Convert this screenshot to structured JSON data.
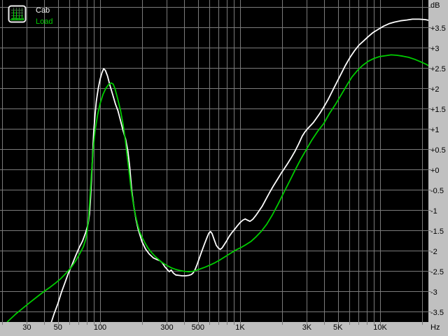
{
  "legend": {
    "icon": "spectrum-analyzer-icon",
    "items": [
      {
        "label": "Cab",
        "color": "#ffffff"
      },
      {
        "label": "Load",
        "color": "#00cc00"
      }
    ]
  },
  "axis": {
    "y_unit_label": "dB",
    "x_unit_label": "Hz"
  },
  "colors": {
    "background": "#000000",
    "grid": "#7a7a7a",
    "axis_strip": "#c0c0c0",
    "axis_text": "#000000",
    "cab_curve": "#ffffff",
    "load_curve": "#00cc00"
  },
  "chart_data": {
    "type": "line",
    "x_scale": "log",
    "x_unit": "Hz",
    "y_unit": "dB",
    "xlim": [
      19.3,
      22300
    ],
    "ylim": [
      -3.8,
      4.17
    ],
    "grid": {
      "x_lines_hz": [
        20,
        30,
        40,
        50,
        60,
        70,
        80,
        90,
        100,
        200,
        300,
        400,
        500,
        600,
        700,
        800,
        900,
        1000,
        2000,
        3000,
        4000,
        5000,
        6000,
        7000,
        8000,
        9000,
        10000,
        20000
      ],
      "y_lines_db_max": 4,
      "y_lines_db_min": -3.5,
      "y_lines_step": 0.5
    },
    "x_ticks": [
      {
        "hz": 30,
        "label": "30"
      },
      {
        "hz": 50,
        "label": "50"
      },
      {
        "hz": 100,
        "label": "100"
      },
      {
        "hz": 300,
        "label": "300"
      },
      {
        "hz": 500,
        "label": "500"
      },
      {
        "hz": 1000,
        "label": "1K"
      },
      {
        "hz": 3000,
        "label": "3K"
      },
      {
        "hz": 5000,
        "label": "5K"
      },
      {
        "hz": 10000,
        "label": "10K"
      }
    ],
    "y_ticks": [
      {
        "db": 3.5,
        "label": "+3.5"
      },
      {
        "db": 3,
        "label": "+3"
      },
      {
        "db": 2.5,
        "label": "+2.5"
      },
      {
        "db": 2,
        "label": "+2"
      },
      {
        "db": 1.5,
        "label": "+1.5"
      },
      {
        "db": 1,
        "label": "+1"
      },
      {
        "db": 0.5,
        "label": "+0.5"
      },
      {
        "db": 0,
        "label": "+0"
      },
      {
        "db": -0.5,
        "label": "-0.5"
      },
      {
        "db": -1,
        "label": "-1"
      },
      {
        "db": -1.5,
        "label": "-1.5"
      },
      {
        "db": -2,
        "label": "-2"
      },
      {
        "db": -2.5,
        "label": "-2.5"
      },
      {
        "db": -3,
        "label": "-3"
      },
      {
        "db": -3.5,
        "label": "-3.5"
      }
    ],
    "series": [
      {
        "name": "Cab",
        "color": "#ffffff",
        "points": [
          [
            44,
            -3.85
          ],
          [
            47,
            -3.55
          ],
          [
            50,
            -3.3
          ],
          [
            53,
            -3.02
          ],
          [
            56,
            -2.8
          ],
          [
            59,
            -2.58
          ],
          [
            63,
            -2.35
          ],
          [
            67,
            -2.12
          ],
          [
            71,
            -1.92
          ],
          [
            75,
            -1.76
          ],
          [
            79,
            -1.55
          ],
          [
            82,
            -1.35
          ],
          [
            84,
            -1.1
          ],
          [
            85.5,
            -0.7
          ],
          [
            87,
            -0.2
          ],
          [
            88.5,
            0.4
          ],
          [
            90,
            0.9
          ],
          [
            92,
            1.35
          ],
          [
            94,
            1.68
          ],
          [
            97,
            2.0
          ],
          [
            100,
            2.22
          ],
          [
            103,
            2.38
          ],
          [
            106,
            2.48
          ],
          [
            109,
            2.44
          ],
          [
            113,
            2.3
          ],
          [
            118,
            2.05
          ],
          [
            124,
            1.8
          ],
          [
            129,
            1.6
          ],
          [
            134,
            1.45
          ],
          [
            140,
            1.2
          ],
          [
            146,
            0.95
          ],
          [
            152,
            0.75
          ],
          [
            158,
            0.45
          ],
          [
            163,
            0.05
          ],
          [
            168,
            -0.5
          ],
          [
            174,
            -0.9
          ],
          [
            181,
            -1.25
          ],
          [
            188,
            -1.5
          ],
          [
            199,
            -1.78
          ],
          [
            211,
            -1.96
          ],
          [
            224,
            -2.08
          ],
          [
            240,
            -2.18
          ],
          [
            255,
            -2.22
          ],
          [
            268,
            -2.25
          ],
          [
            278,
            -2.3
          ],
          [
            290,
            -2.4
          ],
          [
            301,
            -2.46
          ],
          [
            312,
            -2.52
          ],
          [
            322,
            -2.48
          ],
          [
            333,
            -2.55
          ],
          [
            347,
            -2.6
          ],
          [
            365,
            -2.61
          ],
          [
            385,
            -2.62
          ],
          [
            408,
            -2.62
          ],
          [
            430,
            -2.61
          ],
          [
            448,
            -2.59
          ],
          [
            462,
            -2.55
          ],
          [
            478,
            -2.46
          ],
          [
            495,
            -2.33
          ],
          [
            512,
            -2.18
          ],
          [
            532,
            -2.02
          ],
          [
            552,
            -1.87
          ],
          [
            577,
            -1.7
          ],
          [
            598,
            -1.57
          ],
          [
            614,
            -1.53
          ],
          [
            630,
            -1.58
          ],
          [
            652,
            -1.72
          ],
          [
            676,
            -1.87
          ],
          [
            700,
            -1.94
          ],
          [
            722,
            -1.97
          ],
          [
            746,
            -1.93
          ],
          [
            772,
            -1.85
          ],
          [
            802,
            -1.76
          ],
          [
            836,
            -1.65
          ],
          [
            872,
            -1.56
          ],
          [
            912,
            -1.48
          ],
          [
            956,
            -1.39
          ],
          [
            1000,
            -1.31
          ],
          [
            1046,
            -1.25
          ],
          [
            1088,
            -1.22
          ],
          [
            1128,
            -1.25
          ],
          [
            1176,
            -1.28
          ],
          [
            1232,
            -1.23
          ],
          [
            1292,
            -1.14
          ],
          [
            1360,
            -1.03
          ],
          [
            1442,
            -0.9
          ],
          [
            1532,
            -0.73
          ],
          [
            1630,
            -0.56
          ],
          [
            1734,
            -0.4
          ],
          [
            1844,
            -0.25
          ],
          [
            1962,
            -0.1
          ],
          [
            2086,
            0.04
          ],
          [
            2200,
            0.16
          ],
          [
            2330,
            0.3
          ],
          [
            2470,
            0.45
          ],
          [
            2620,
            0.63
          ],
          [
            2780,
            0.82
          ],
          [
            2900,
            0.92
          ],
          [
            3030,
            1.0
          ],
          [
            3170,
            1.07
          ],
          [
            3330,
            1.15
          ],
          [
            3510,
            1.26
          ],
          [
            3710,
            1.38
          ],
          [
            3950,
            1.53
          ],
          [
            4250,
            1.72
          ],
          [
            4560,
            1.93
          ],
          [
            4900,
            2.14
          ],
          [
            5260,
            2.35
          ],
          [
            5650,
            2.56
          ],
          [
            6100,
            2.76
          ],
          [
            6560,
            2.92
          ],
          [
            7060,
            3.06
          ],
          [
            7600,
            3.16
          ],
          [
            8220,
            3.27
          ],
          [
            8900,
            3.37
          ],
          [
            9700,
            3.45
          ],
          [
            10600,
            3.53
          ],
          [
            11600,
            3.59
          ],
          [
            12700,
            3.63
          ],
          [
            14000,
            3.66
          ],
          [
            15500,
            3.68
          ],
          [
            17000,
            3.7
          ],
          [
            19000,
            3.7
          ],
          [
            21000,
            3.69
          ],
          [
            22300,
            3.67
          ]
        ]
      },
      {
        "name": "Load",
        "color": "#00cc00",
        "points": [
          [
            19.5,
            -3.95
          ],
          [
            22,
            -3.74
          ],
          [
            25,
            -3.56
          ],
          [
            28,
            -3.42
          ],
          [
            32,
            -3.26
          ],
          [
            36,
            -3.12
          ],
          [
            40,
            -3.0
          ],
          [
            44,
            -2.9
          ],
          [
            48,
            -2.8
          ],
          [
            52,
            -2.7
          ],
          [
            57,
            -2.56
          ],
          [
            62,
            -2.42
          ],
          [
            67,
            -2.25
          ],
          [
            72,
            -2.06
          ],
          [
            76,
            -1.9
          ],
          [
            79,
            -1.72
          ],
          [
            81,
            -1.5
          ],
          [
            83,
            -1.15
          ],
          [
            85,
            -0.6
          ],
          [
            87,
            -0.05
          ],
          [
            89,
            0.45
          ],
          [
            92,
            0.95
          ],
          [
            96,
            1.35
          ],
          [
            100,
            1.62
          ],
          [
            105,
            1.85
          ],
          [
            110,
            2.0
          ],
          [
            115,
            2.09
          ],
          [
            120,
            2.13
          ],
          [
            124,
            2.1
          ],
          [
            128,
            1.98
          ],
          [
            134,
            1.72
          ],
          [
            140,
            1.45
          ],
          [
            146,
            1.1
          ],
          [
            151,
            0.75
          ],
          [
            156,
            0.35
          ],
          [
            161,
            -0.05
          ],
          [
            166,
            -0.45
          ],
          [
            172,
            -0.8
          ],
          [
            178,
            -1.1
          ],
          [
            185,
            -1.35
          ],
          [
            192,
            -1.55
          ],
          [
            200,
            -1.68
          ],
          [
            210,
            -1.82
          ],
          [
            220,
            -1.94
          ],
          [
            232,
            -2.04
          ],
          [
            245,
            -2.13
          ],
          [
            258,
            -2.2
          ],
          [
            272,
            -2.27
          ],
          [
            288,
            -2.33
          ],
          [
            305,
            -2.38
          ],
          [
            325,
            -2.43
          ],
          [
            345,
            -2.46
          ],
          [
            370,
            -2.49
          ],
          [
            400,
            -2.51
          ],
          [
            430,
            -2.52
          ],
          [
            460,
            -2.51
          ],
          [
            490,
            -2.48
          ],
          [
            520,
            -2.45
          ],
          [
            560,
            -2.41
          ],
          [
            605,
            -2.36
          ],
          [
            660,
            -2.3
          ],
          [
            725,
            -2.22
          ],
          [
            790,
            -2.14
          ],
          [
            860,
            -2.06
          ],
          [
            940,
            -1.98
          ],
          [
            1020,
            -1.92
          ],
          [
            1105,
            -1.85
          ],
          [
            1200,
            -1.77
          ],
          [
            1300,
            -1.66
          ],
          [
            1420,
            -1.52
          ],
          [
            1550,
            -1.35
          ],
          [
            1700,
            -1.12
          ],
          [
            1870,
            -0.85
          ],
          [
            2050,
            -0.57
          ],
          [
            2250,
            -0.3
          ],
          [
            2460,
            -0.03
          ],
          [
            2700,
            0.24
          ],
          [
            2960,
            0.48
          ],
          [
            3250,
            0.72
          ],
          [
            3600,
            0.95
          ],
          [
            3960,
            1.13
          ],
          [
            4350,
            1.38
          ],
          [
            4800,
            1.6
          ],
          [
            5300,
            1.85
          ],
          [
            5800,
            2.08
          ],
          [
            6300,
            2.28
          ],
          [
            6900,
            2.44
          ],
          [
            7500,
            2.56
          ],
          [
            8200,
            2.66
          ],
          [
            9000,
            2.73
          ],
          [
            9900,
            2.78
          ],
          [
            10900,
            2.8
          ],
          [
            12000,
            2.82
          ],
          [
            13200,
            2.81
          ],
          [
            14500,
            2.79
          ],
          [
            16000,
            2.76
          ],
          [
            17700,
            2.71
          ],
          [
            19500,
            2.65
          ],
          [
            21300,
            2.59
          ],
          [
            22300,
            2.55
          ]
        ]
      }
    ]
  }
}
